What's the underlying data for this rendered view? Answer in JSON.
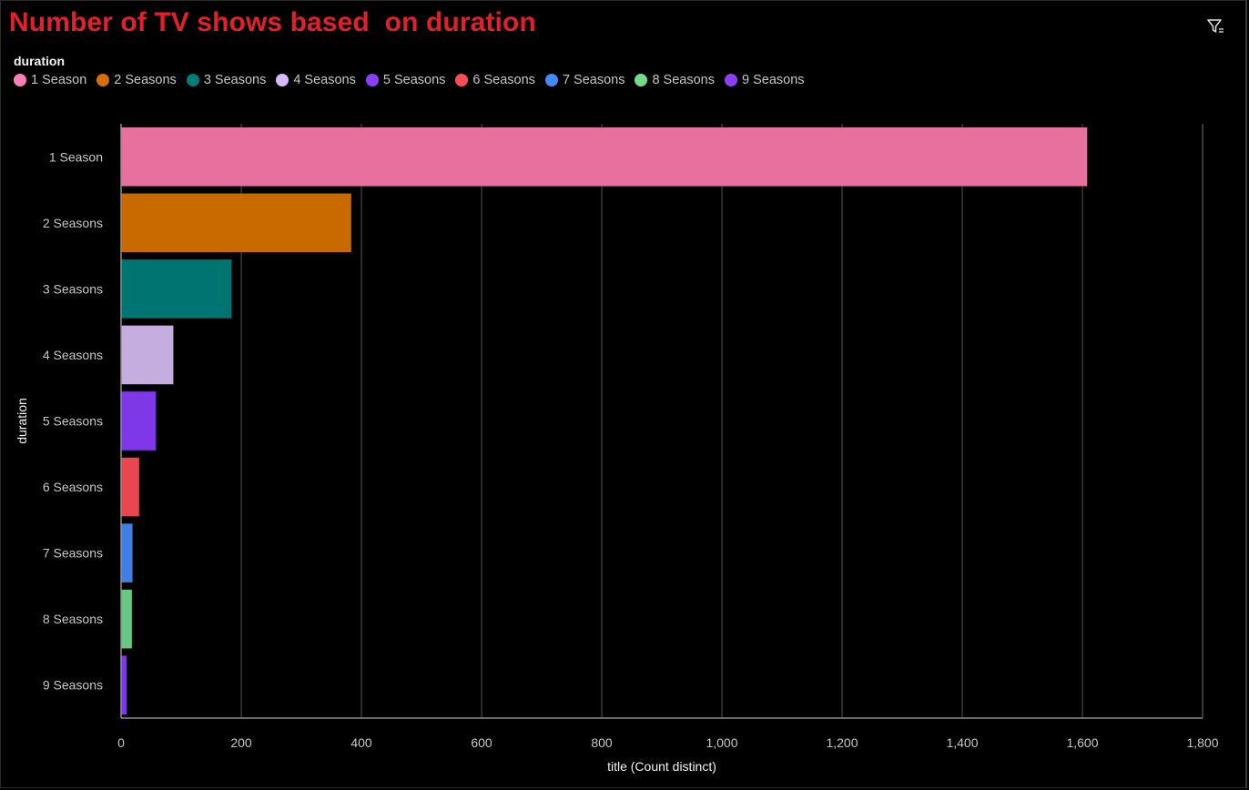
{
  "title": "Number of TV shows based  on duration",
  "filter_icon": "filter-icon",
  "legend": {
    "title": "duration",
    "items": [
      {
        "label": "1 Season",
        "color": "#ff7eb6"
      },
      {
        "label": "2 Seasons",
        "color": "#d86e00"
      },
      {
        "label": "3 Seasons",
        "color": "#007d79"
      },
      {
        "label": "4 Seasons",
        "color": "#d4bbff"
      },
      {
        "label": "5 Seasons",
        "color": "#8a3ffc"
      },
      {
        "label": "6 Seasons",
        "color": "#fa4d56"
      },
      {
        "label": "7 Seasons",
        "color": "#4589ff"
      },
      {
        "label": "8 Seasons",
        "color": "#6fdc8c"
      },
      {
        "label": "9 Seasons",
        "color": "#8a3ffc"
      }
    ]
  },
  "chart_data": {
    "type": "bar",
    "orientation": "horizontal",
    "categories": [
      "1 Season",
      "2 Seasons",
      "3 Seasons",
      "4 Seasons",
      "5 Seasons",
      "6 Seasons",
      "7 Seasons",
      "8 Seasons",
      "9 Seasons"
    ],
    "values": [
      1608,
      383,
      184,
      87,
      58,
      30,
      19,
      18,
      9
    ],
    "colors": [
      "#e8709f",
      "#c96a00",
      "#007470",
      "#c5addf",
      "#7f38e8",
      "#e8474f",
      "#417fe6",
      "#66c882",
      "#7f38e8"
    ],
    "xlabel": "title (Count distinct)",
    "ylabel": "duration",
    "xlim": [
      0,
      1800
    ],
    "xticks": [
      0,
      200,
      400,
      600,
      800,
      1000,
      1200,
      1400,
      1600,
      1800
    ],
    "xtick_labels": [
      "0",
      "200",
      "400",
      "600",
      "800",
      "1,000",
      "1,200",
      "1,400",
      "1,600",
      "1,800"
    ],
    "grid": true,
    "legend_position": "top-left"
  }
}
